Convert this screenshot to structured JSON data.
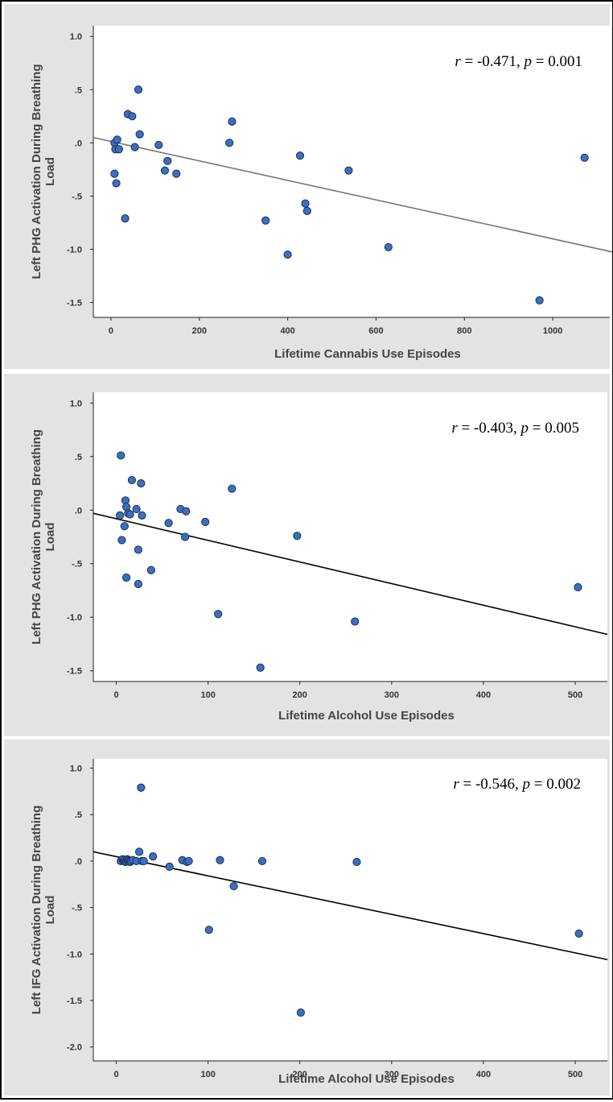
{
  "chart_data": [
    {
      "type": "scatter",
      "xlabel": "Lifetime Cannabis Use Episodes",
      "ylabel": "Left PHG Activation During Breathing Load",
      "xticks": [
        0,
        200,
        400,
        600,
        800,
        1000
      ],
      "yticks": [
        1.0,
        0.5,
        0.0,
        -0.5,
        -1.0,
        -1.5
      ],
      "ytick_labels": [
        "1.0",
        ".5",
        ".0",
        "-.5",
        "-1.0",
        "-1.5"
      ],
      "xlim": [
        -40,
        1140
      ],
      "ylim": [
        -1.64,
        1.1
      ],
      "annotation": {
        "r": "r = -0.471, p = 0.001"
      },
      "fit_line": {
        "x": [
          -40,
          1140
        ],
        "y": [
          0.05,
          -1.03
        ],
        "color": "#777777"
      },
      "points": [
        [
          8,
          0.0
        ],
        [
          10,
          -0.06
        ],
        [
          18,
          -0.06
        ],
        [
          14,
          0.03
        ],
        [
          8,
          -0.29
        ],
        [
          12,
          -0.38
        ],
        [
          32,
          -0.71
        ],
        [
          38,
          0.27
        ],
        [
          48,
          0.25
        ],
        [
          54,
          -0.04
        ],
        [
          62,
          0.5
        ],
        [
          65,
          0.08
        ],
        [
          108,
          -0.02
        ],
        [
          122,
          -0.26
        ],
        [
          128,
          -0.17
        ],
        [
          148,
          -0.29
        ],
        [
          268,
          0.0
        ],
        [
          274,
          0.2
        ],
        [
          350,
          -0.73
        ],
        [
          400,
          -1.05
        ],
        [
          428,
          -0.12
        ],
        [
          440,
          -0.57
        ],
        [
          444,
          -0.64
        ],
        [
          538,
          -0.26
        ],
        [
          628,
          -0.98
        ],
        [
          970,
          -1.48
        ],
        [
          1072,
          -0.14
        ]
      ]
    },
    {
      "type": "scatter",
      "xlabel": "Lifetime Alcohol Use Episodes",
      "ylabel": "Left PHG Activation During Breathing Load",
      "xticks": [
        0,
        100,
        200,
        300,
        400,
        500
      ],
      "yticks": [
        1.0,
        0.5,
        0.0,
        -0.5,
        -1.0,
        -1.5
      ],
      "ytick_labels": [
        "1.0",
        ".5",
        ".0",
        "-.5",
        "-1.0",
        "-1.5"
      ],
      "xlim": [
        -25,
        535
      ],
      "ylim": [
        -1.6,
        1.1
      ],
      "annotation": {
        "r": "r = -0.403, p = 0.005"
      },
      "fit_line": {
        "x": [
          -25,
          535
        ],
        "y": [
          -0.03,
          -1.16
        ],
        "color": "#000000"
      },
      "points": [
        [
          5,
          0.51
        ],
        [
          4,
          -0.05
        ],
        [
          6,
          -0.28
        ],
        [
          9,
          -0.15
        ],
        [
          10,
          0.09
        ],
        [
          11,
          0.03
        ],
        [
          11,
          -0.63
        ],
        [
          13,
          -0.03
        ],
        [
          15,
          -0.04
        ],
        [
          17,
          0.28
        ],
        [
          22,
          0.01
        ],
        [
          24,
          -0.37
        ],
        [
          24,
          -0.69
        ],
        [
          27,
          0.25
        ],
        [
          28,
          -0.05
        ],
        [
          38,
          -0.56
        ],
        [
          57,
          -0.12
        ],
        [
          70,
          0.01
        ],
        [
          75,
          -0.25
        ],
        [
          76,
          -0.01
        ],
        [
          97,
          -0.11
        ],
        [
          111,
          -0.97
        ],
        [
          126,
          0.2
        ],
        [
          157,
          -1.47
        ],
        [
          197,
          -0.24
        ],
        [
          260,
          -1.04
        ],
        [
          503,
          -0.72
        ]
      ]
    },
    {
      "type": "scatter",
      "xlabel": "Lifetime Alcohol Use Episodes",
      "ylabel": "Left IFG Activation During Breathing Load",
      "xticks": [
        0,
        100,
        200,
        300,
        400,
        500
      ],
      "yticks": [
        1.0,
        0.5,
        0.0,
        -0.5,
        -1.0,
        -1.5,
        -2.0
      ],
      "ytick_labels": [
        "1.0",
        ".5",
        ".0",
        "-.5",
        "-1.0",
        "-1.5",
        "-2.0"
      ],
      "xlim": [
        -25,
        535
      ],
      "ylim": [
        -2.15,
        1.1
      ],
      "annotation": {
        "r": "r = -0.546, p = 0.002"
      },
      "fit_line": {
        "x": [
          -25,
          535
        ],
        "y": [
          0.1,
          -1.06
        ],
        "color": "#000000"
      },
      "points": [
        [
          5,
          0.0
        ],
        [
          7,
          0.02
        ],
        [
          8,
          0.0
        ],
        [
          9,
          0.01
        ],
        [
          10,
          -0.01
        ],
        [
          11,
          0.0
        ],
        [
          12,
          0.02
        ],
        [
          13,
          0.01
        ],
        [
          14,
          0.0
        ],
        [
          15,
          -0.01
        ],
        [
          16,
          0.0
        ],
        [
          18,
          0.01
        ],
        [
          22,
          0.0
        ],
        [
          25,
          0.1
        ],
        [
          27,
          0.79
        ],
        [
          28,
          0.0
        ],
        [
          30,
          0.0
        ],
        [
          40,
          0.05
        ],
        [
          58,
          -0.06
        ],
        [
          72,
          0.01
        ],
        [
          77,
          -0.01
        ],
        [
          79,
          0.0
        ],
        [
          101,
          -0.74
        ],
        [
          113,
          0.01
        ],
        [
          128,
          -0.27
        ],
        [
          159,
          0.0
        ],
        [
          201,
          -1.63
        ],
        [
          262,
          -0.01
        ],
        [
          504,
          -0.78
        ]
      ]
    }
  ]
}
